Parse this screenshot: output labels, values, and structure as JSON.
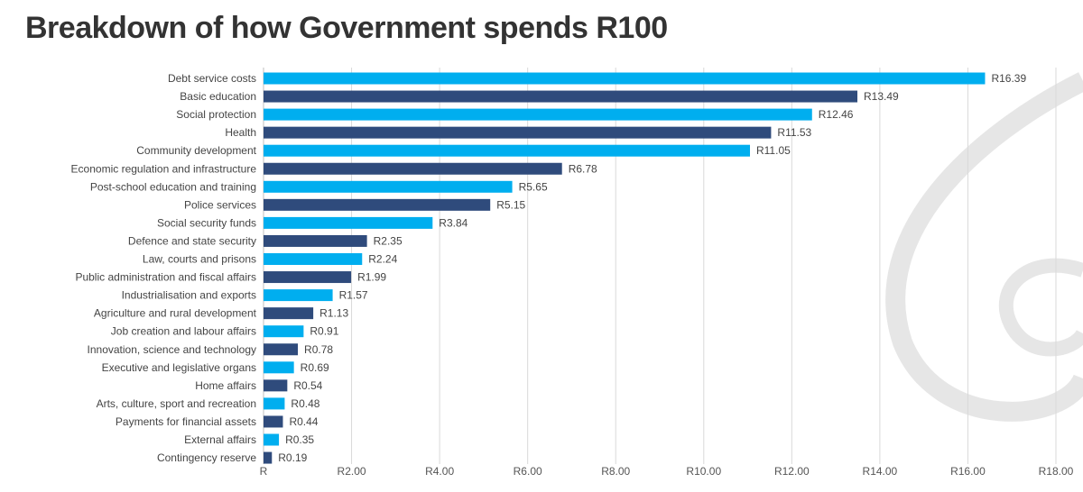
{
  "chart_data": {
    "type": "bar",
    "orientation": "horizontal",
    "title": "Breakdown of how Government spends R100",
    "categories": [
      "Debt service costs",
      "Basic education",
      "Social protection",
      "Health",
      "Community development",
      "Economic regulation and infrastructure",
      "Post-school education and training",
      "Police services",
      "Social security funds",
      "Defence and state security",
      "Law, courts and prisons",
      "Public administration and fiscal affairs",
      "Industrialisation and exports",
      "Agriculture and rural development",
      "Job creation and labour affairs",
      "Innovation, science and technology",
      "Executive and legislative organs",
      "Home affairs",
      "Arts, culture, sport and recreation",
      "Payments for financial assets",
      "External affairs",
      "Contingency reserve"
    ],
    "values": [
      16.39,
      13.49,
      12.46,
      11.53,
      11.05,
      6.78,
      5.65,
      5.15,
      3.84,
      2.35,
      2.24,
      1.99,
      1.57,
      1.13,
      0.91,
      0.78,
      0.69,
      0.54,
      0.48,
      0.44,
      0.35,
      0.19
    ],
    "data_labels": [
      "R16.39",
      "R13.49",
      "R12.46",
      "R11.53",
      "R11.05",
      "R6.78",
      "R5.65",
      "R5.15",
      "R3.84",
      "R2.35",
      "R2.24",
      "R1.99",
      "R1.57",
      "R1.13",
      "R0.91",
      "R0.78",
      "R0.69",
      "R0.54",
      "R0.48",
      "R0.44",
      "R0.35",
      "R0.19"
    ],
    "xlim": [
      0,
      18
    ],
    "x_ticks": [
      0,
      2,
      4,
      6,
      8,
      10,
      12,
      14,
      16,
      18
    ],
    "x_tick_labels": [
      "R",
      "R2.00",
      "R4.00",
      "R6.00",
      "R8.00",
      "R10.00",
      "R12.00",
      "R14.00",
      "R16.00",
      "R18.00"
    ],
    "grid": "vertical",
    "legend": "none",
    "colors": [
      "#00AEEF",
      "#2F4B7C"
    ],
    "color_pattern": "alternating"
  }
}
